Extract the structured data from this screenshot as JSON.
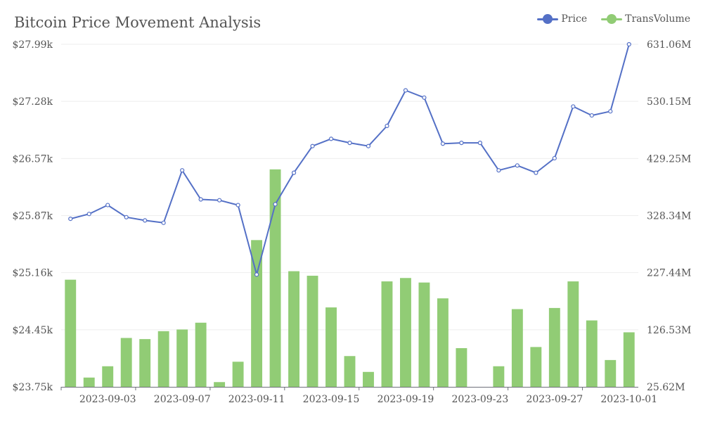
{
  "chart_data": {
    "type": "bar",
    "title": "Bitcoin Price Movement Analysis",
    "x": [
      "2023-09-01",
      "2023-09-02",
      "2023-09-03",
      "2023-09-04",
      "2023-09-05",
      "2023-09-06",
      "2023-09-07",
      "2023-09-08",
      "2023-09-09",
      "2023-09-10",
      "2023-09-11",
      "2023-09-12",
      "2023-09-13",
      "2023-09-14",
      "2023-09-15",
      "2023-09-16",
      "2023-09-17",
      "2023-09-18",
      "2023-09-19",
      "2023-09-20",
      "2023-09-21",
      "2023-09-22",
      "2023-09-23",
      "2023-09-24",
      "2023-09-25",
      "2023-09-26",
      "2023-09-27",
      "2023-09-28",
      "2023-09-29",
      "2023-09-30",
      "2023-10-01"
    ],
    "x_tick_labels": [
      "2023-09-03",
      "2023-09-07",
      "2023-09-11",
      "2023-09-15",
      "2023-09-19",
      "2023-09-23",
      "2023-09-27",
      "2023-10-01"
    ],
    "series": [
      {
        "name": "Price",
        "type": "line",
        "axis": "left",
        "color": "#5470c6",
        "values": [
          25.83,
          25.89,
          26.0,
          25.85,
          25.81,
          25.78,
          26.43,
          26.07,
          26.06,
          26.0,
          25.14,
          26.01,
          26.4,
          26.73,
          26.82,
          26.77,
          26.73,
          26.98,
          27.42,
          27.33,
          26.76,
          26.77,
          26.77,
          26.43,
          26.49,
          26.4,
          26.58,
          27.22,
          27.11,
          27.16,
          27.99
        ]
      },
      {
        "name": "TransVolume",
        "type": "bar",
        "axis": "right",
        "color": "#91cc75",
        "values": [
          215,
          42,
          62,
          112,
          110,
          124,
          127,
          139,
          34,
          70,
          285,
          410,
          230,
          222,
          166,
          80,
          52,
          212,
          218,
          210,
          182,
          94,
          25,
          62,
          163,
          96,
          165,
          212,
          143,
          73,
          122
        ]
      }
    ],
    "y_left": {
      "ticks": [
        "$23.75k",
        "$24.45k",
        "$25.16k",
        "$25.87k",
        "$26.57k",
        "$27.28k",
        "$27.99k"
      ],
      "min": 23.75,
      "max": 27.99
    },
    "y_right": {
      "ticks": [
        "25.62M",
        "126.53M",
        "227.44M",
        "328.34M",
        "429.25M",
        "530.15M",
        "631.06M"
      ],
      "min": 25.62,
      "max": 631.06
    },
    "grid": true,
    "legend_position": "top-right"
  }
}
